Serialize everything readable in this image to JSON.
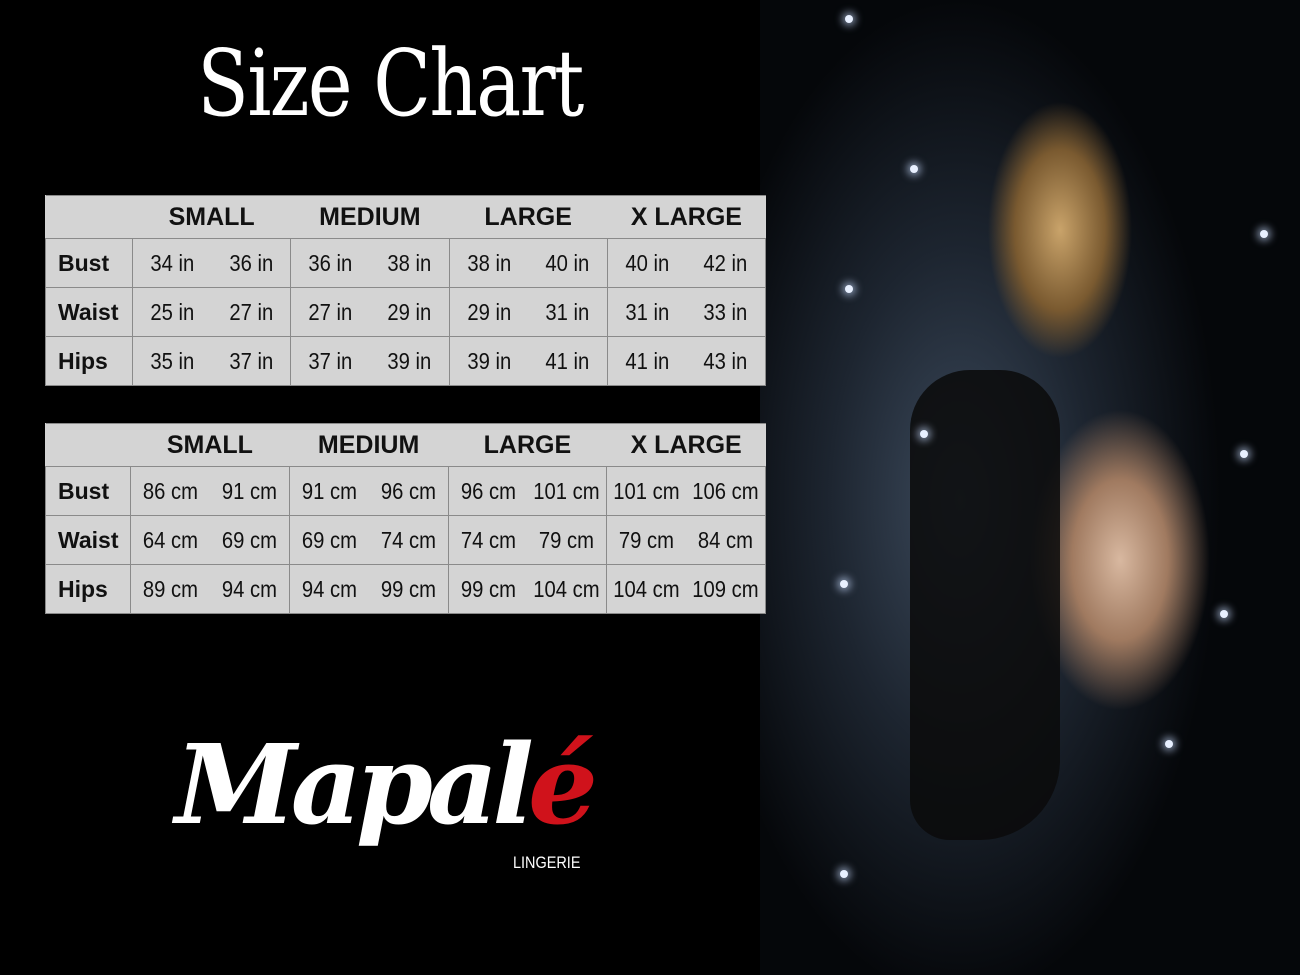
{
  "title": "Size Chart",
  "sizes": [
    "SMALL",
    "MEDIUM",
    "LARGE",
    "X LARGE"
  ],
  "tables": [
    {
      "unit": "in",
      "rows": [
        {
          "label": "Bust",
          "values": [
            "34 in",
            "36 in",
            "36 in",
            "38 in",
            "38 in",
            "40 in",
            "40 in",
            "42 in"
          ]
        },
        {
          "label": "Waist",
          "values": [
            "25 in",
            "27 in",
            "27 in",
            "29 in",
            "29 in",
            "31 in",
            "31 in",
            "33 in"
          ]
        },
        {
          "label": "Hips",
          "values": [
            "35 in",
            "37 in",
            "37 in",
            "39 in",
            "39 in",
            "41 in",
            "41 in",
            "43 in"
          ]
        }
      ]
    },
    {
      "unit": "cm",
      "rows": [
        {
          "label": "Bust",
          "values": [
            "86 cm",
            "91 cm",
            "91 cm",
            "96 cm",
            "96 cm",
            "101 cm",
            "101 cm",
            "106 cm"
          ]
        },
        {
          "label": "Waist",
          "values": [
            "64 cm",
            "69 cm",
            "69 cm",
            "74 cm",
            "74 cm",
            "79 cm",
            "79 cm",
            "84 cm"
          ]
        },
        {
          "label": "Hips",
          "values": [
            "89 cm",
            "94 cm",
            "94 cm",
            "99 cm",
            "99 cm",
            "104 cm",
            "104 cm",
            "109 cm"
          ]
        }
      ]
    }
  ],
  "brand": {
    "name_main": "Mapal",
    "name_accent": "é",
    "tagline": "LINGERIE",
    "accent_color": "#d0121b"
  },
  "colors": {
    "background": "#000000",
    "table_bg": "#d4d4d4"
  }
}
